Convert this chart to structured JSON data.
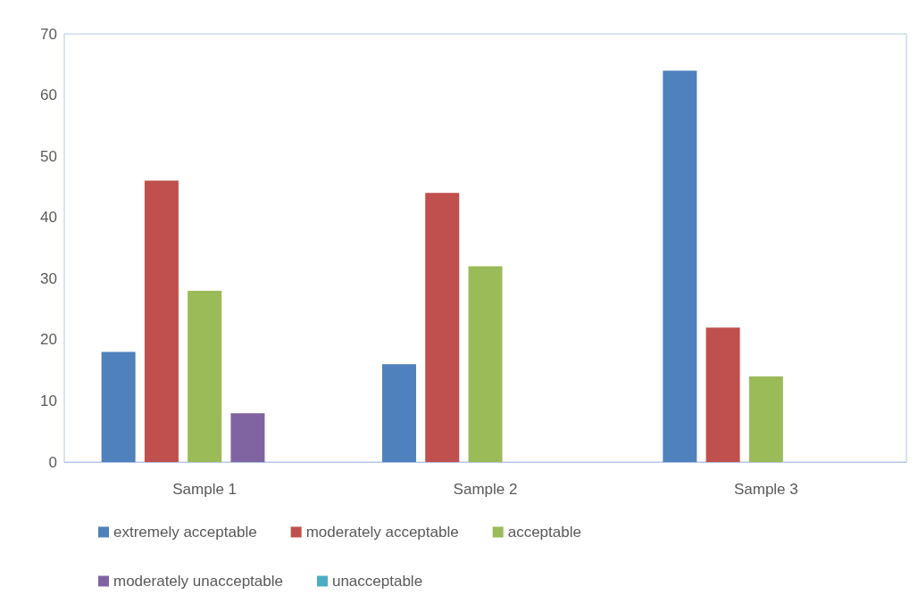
{
  "chart_data": {
    "type": "bar",
    "categories": [
      "Sample 1",
      "Sample 2",
      "Sample 3"
    ],
    "series": [
      {
        "name": "extremely acceptable",
        "color": "#4f81bd",
        "values": [
          18,
          16,
          64
        ]
      },
      {
        "name": "moderately acceptable",
        "color": "#c0504d",
        "values": [
          46,
          44,
          22
        ]
      },
      {
        "name": "acceptable",
        "color": "#9bbb59",
        "values": [
          28,
          32,
          14
        ]
      },
      {
        "name": "moderately unacceptable",
        "color": "#8064a2",
        "values": [
          8,
          0,
          0
        ]
      },
      {
        "name": "unacceptable",
        "color": "#4bacc6",
        "values": [
          0,
          0,
          0
        ]
      }
    ],
    "ylim": [
      0,
      70
    ],
    "yticks": [
      0,
      10,
      20,
      30,
      40,
      50,
      60,
      70
    ],
    "grid": false,
    "legend": "bottom"
  }
}
